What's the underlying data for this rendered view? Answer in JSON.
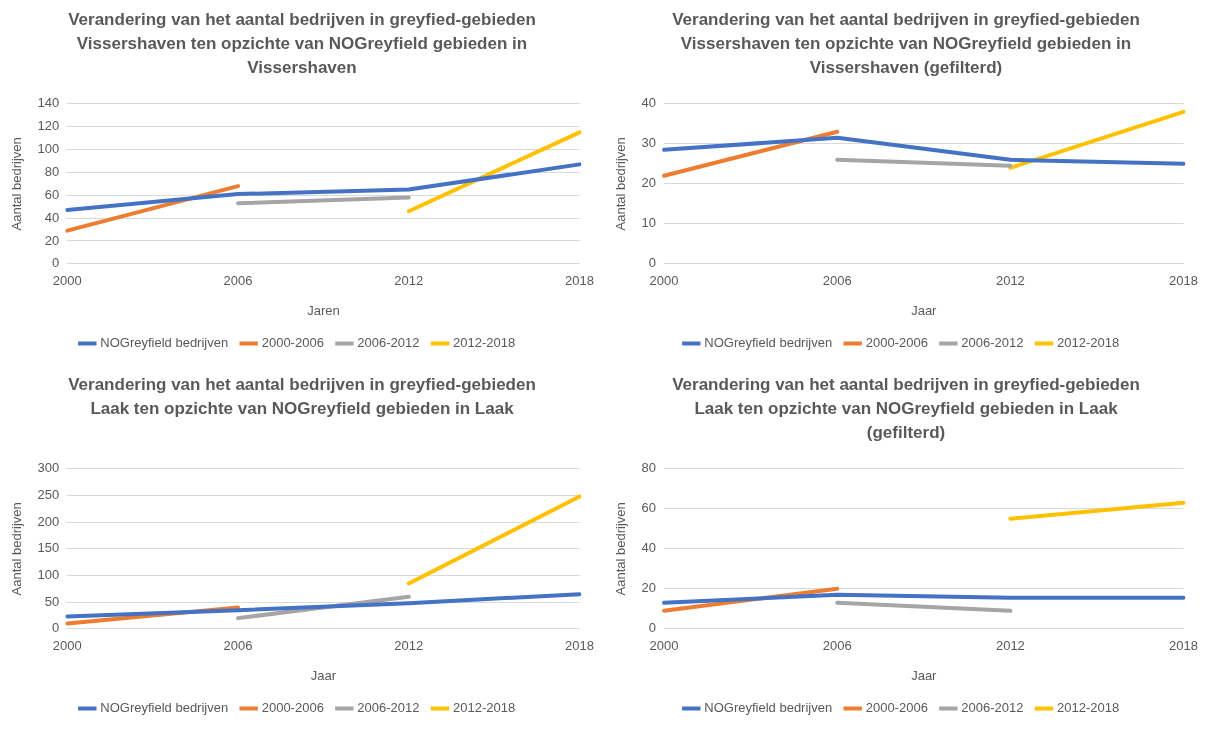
{
  "chart_data": [
    {
      "type": "line",
      "title": "Verandering van het aantal bedrijven in greyfied-gebieden Vissershaven ten opzichte van NOGreyfield gebieden in Vissershaven",
      "xlabel": "Jaren",
      "ylabel": "Aantal bedrijven",
      "categories": [
        "2000",
        "2006",
        "2012",
        "2018"
      ],
      "ylim": [
        0,
        140
      ],
      "yticks": [
        0,
        20,
        40,
        60,
        80,
        100,
        120,
        140
      ],
      "grid": "y",
      "legend": "bottom",
      "marker": "none",
      "series": [
        {
          "name": "NOGreyfield bedrijven",
          "color": "#4472c4",
          "values": [
            47,
            61,
            65,
            87
          ]
        },
        {
          "name": "2000-2006",
          "color": "#ed7d31",
          "values": [
            29,
            68,
            null,
            null
          ]
        },
        {
          "name": "2006-2012",
          "color": "#a5a5a5",
          "values": [
            null,
            53,
            58,
            null
          ]
        },
        {
          "name": "2012-2018",
          "color": "#ffc000",
          "values": [
            null,
            null,
            46,
            115
          ]
        }
      ]
    },
    {
      "type": "line",
      "title": "Verandering van het aantal bedrijven in greyfied-gebieden Vissershaven ten opzichte van NOGreyfield gebieden in Vissershaven (gefilterd)",
      "xlabel": "Jaar",
      "ylabel": "Aantal bedrijven",
      "categories": [
        "2000",
        "2006",
        "2012",
        "2018"
      ],
      "ylim": [
        0,
        40
      ],
      "yticks": [
        0,
        10,
        20,
        30,
        40
      ],
      "grid": "y",
      "legend": "bottom",
      "marker": "none",
      "series": [
        {
          "name": "NOGreyfield bedrijven",
          "color": "#4472c4",
          "values": [
            28.5,
            31.5,
            26,
            25
          ]
        },
        {
          "name": "2000-2006",
          "color": "#ed7d31",
          "values": [
            22,
            33,
            null,
            null
          ]
        },
        {
          "name": "2006-2012",
          "color": "#a5a5a5",
          "values": [
            null,
            26,
            24.5,
            null
          ]
        },
        {
          "name": "2012-2018",
          "color": "#ffc000",
          "values": [
            null,
            null,
            24,
            38
          ]
        }
      ]
    },
    {
      "type": "line",
      "title": "Verandering van het aantal bedrijven in greyfied-gebieden Laak ten opzichte van NOGreyfield gebieden in Laak",
      "xlabel": "Jaar",
      "ylabel": "Aantal bedrijven",
      "categories": [
        "2000",
        "2006",
        "2012",
        "2018"
      ],
      "ylim": [
        0,
        300
      ],
      "yticks": [
        0,
        50,
        100,
        150,
        200,
        250,
        300
      ],
      "grid": "y",
      "legend": "bottom",
      "marker": "none",
      "series": [
        {
          "name": "NOGreyfield bedrijven",
          "color": "#4472c4",
          "values": [
            23,
            35,
            48,
            65
          ]
        },
        {
          "name": "2000-2006",
          "color": "#ed7d31",
          "values": [
            10,
            40,
            null,
            null
          ]
        },
        {
          "name": "2006-2012",
          "color": "#a5a5a5",
          "values": [
            null,
            20,
            60,
            null
          ]
        },
        {
          "name": "2012-2018",
          "color": "#ffc000",
          "values": [
            null,
            null,
            85,
            248
          ]
        }
      ]
    },
    {
      "type": "line",
      "title": "Verandering van het aantal bedrijven in greyfied-gebieden Laak ten opzichte van NOGreyfield gebieden in Laak (gefilterd)",
      "xlabel": "Jaar",
      "ylabel": "Aantal bedrijven",
      "categories": [
        "2000",
        "2006",
        "2012",
        "2018"
      ],
      "ylim": [
        0,
        80
      ],
      "yticks": [
        0,
        20,
        40,
        60,
        80
      ],
      "grid": "y",
      "legend": "bottom",
      "marker": "none",
      "series": [
        {
          "name": "NOGreyfield bedrijven",
          "color": "#4472c4",
          "values": [
            13,
            17,
            15.5,
            15.5
          ]
        },
        {
          "name": "2000-2006",
          "color": "#ed7d31",
          "values": [
            9,
            20,
            null,
            null
          ]
        },
        {
          "name": "2006-2012",
          "color": "#a5a5a5",
          "values": [
            null,
            13,
            9,
            null
          ]
        },
        {
          "name": "2012-2018",
          "color": "#ffc000",
          "values": [
            null,
            null,
            55,
            63
          ]
        }
      ]
    }
  ]
}
